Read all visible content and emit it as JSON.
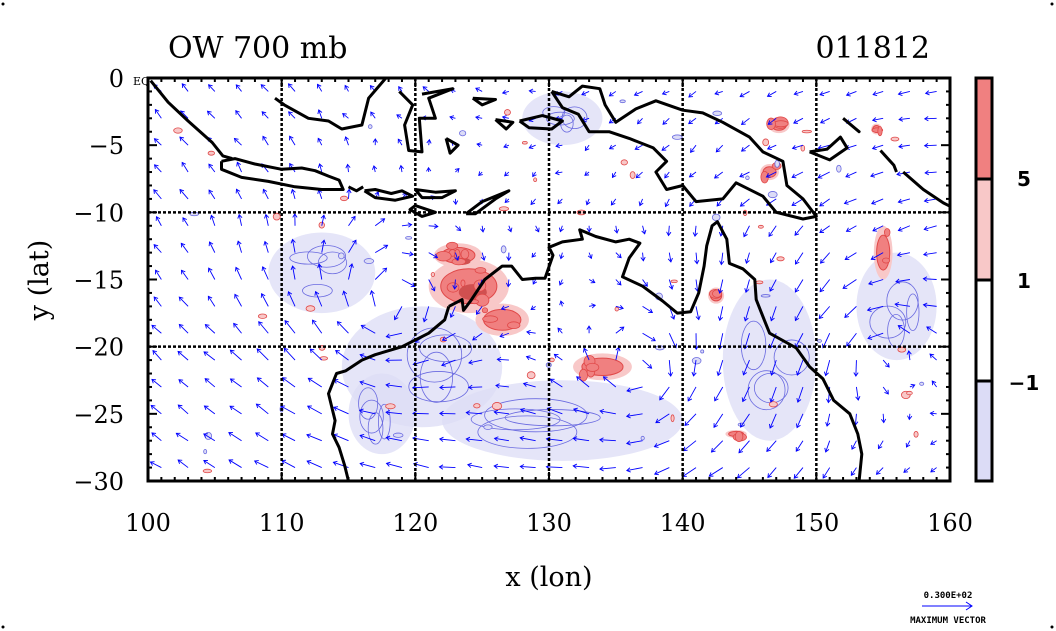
{
  "chart_data": {
    "type": "heatmap",
    "title_left": "OW 700 mb",
    "title_right": "011812",
    "xlabel": "x (lon)",
    "ylabel": "y (lat)",
    "xlim": [
      100,
      160
    ],
    "ylim": [
      -30,
      0
    ],
    "x_ticks": [
      100,
      110,
      120,
      130,
      140,
      150,
      160
    ],
    "x_tick_labels": [
      "100",
      "110",
      "120",
      "130",
      "140",
      "150",
      "160"
    ],
    "y_ticks": [
      0,
      -5,
      -10,
      -15,
      -20,
      -25,
      -30
    ],
    "y_tick_labels": [
      "0",
      "−5",
      "−10",
      "−15",
      "−20",
      "−25",
      "−30"
    ],
    "eq_label": "EQ",
    "grid_lon": [
      110,
      120,
      130,
      140,
      150
    ],
    "grid_lat": [
      -10,
      -20
    ],
    "colorbar": {
      "levels": [
        "5",
        "1",
        "−1"
      ],
      "colors": [
        "#f08080",
        "#f8c8c8",
        "#ffffff",
        "#dcdcf6"
      ]
    },
    "max_vector": {
      "value_label": "0.300E+02",
      "label": "MAXIMUM VECTOR"
    },
    "colors": {
      "coast": "#000000",
      "vectors": "#0000ff",
      "positive": "#e04848",
      "negative": "#6a6ae0"
    },
    "positive_regions": [
      {
        "lon": 124,
        "lat": -15.5,
        "rx": 3.0,
        "ry": 2.0,
        "strength": 6
      },
      {
        "lon": 123.2,
        "lat": -13.2,
        "rx": 1.8,
        "ry": 0.9,
        "strength": 6
      },
      {
        "lon": 126.5,
        "lat": -18.0,
        "rx": 2.0,
        "ry": 1.2,
        "strength": 3
      },
      {
        "lon": 134.0,
        "lat": -21.5,
        "rx": 2.2,
        "ry": 1.0,
        "strength": 4
      },
      {
        "lon": 155.0,
        "lat": -13.0,
        "rx": 0.7,
        "ry": 2.0,
        "strength": 2
      },
      {
        "lon": 142.5,
        "lat": -16.2,
        "rx": 0.6,
        "ry": 0.6,
        "strength": 2
      },
      {
        "lon": 147.2,
        "lat": -3.5,
        "rx": 0.8,
        "ry": 0.6,
        "strength": 3
      },
      {
        "lon": 146.5,
        "lat": -7.0,
        "rx": 0.7,
        "ry": 0.6,
        "strength": 2
      },
      {
        "lon": 144.0,
        "lat": -26.5,
        "rx": 0.8,
        "ry": 0.3,
        "strength": 2
      },
      {
        "lon": 154.5,
        "lat": -3.8,
        "rx": 0.4,
        "ry": 0.4,
        "strength": 2
      }
    ],
    "negative_regions": [
      {
        "lon": 120.5,
        "lat": -21.5,
        "rx": 6.0,
        "ry": 4.5
      },
      {
        "lon": 131.0,
        "lat": -25.5,
        "rx": 9.0,
        "ry": 3.0
      },
      {
        "lon": 146.5,
        "lat": -21.0,
        "rx": 3.5,
        "ry": 6.0
      },
      {
        "lon": 113.0,
        "lat": -14.5,
        "rx": 4.0,
        "ry": 3.0
      },
      {
        "lon": 131.0,
        "lat": -3.0,
        "rx": 3.0,
        "ry": 2.0
      },
      {
        "lon": 156.0,
        "lat": -17.0,
        "rx": 3.0,
        "ry": 4.0
      },
      {
        "lon": 117.5,
        "lat": -25.0,
        "rx": 2.5,
        "ry": 3.0
      }
    ],
    "coastlines": [
      [
        [
          100.2,
          -0.2
        ],
        [
          101.5,
          -1.8
        ],
        [
          103.0,
          -3.2
        ],
        [
          104.8,
          -4.8
        ],
        [
          105.6,
          -5.8
        ],
        [
          106.3,
          -6.0
        ]
      ],
      [
        [
          105.5,
          -6.2
        ],
        [
          106.5,
          -6.0
        ],
        [
          108.0,
          -6.4
        ],
        [
          110.0,
          -6.8
        ],
        [
          111.5,
          -6.7
        ],
        [
          112.5,
          -6.9
        ],
        [
          113.5,
          -7.3
        ],
        [
          114.3,
          -7.6
        ],
        [
          114.6,
          -8.3
        ],
        [
          113.0,
          -8.3
        ],
        [
          111.0,
          -8.1
        ],
        [
          109.0,
          -7.7
        ],
        [
          107.0,
          -7.4
        ],
        [
          105.5,
          -6.8
        ],
        [
          105.5,
          -6.2
        ]
      ],
      [
        [
          115.0,
          -8.1
        ],
        [
          115.6,
          -8.4
        ],
        [
          116.1,
          -8.1
        ]
      ],
      [
        [
          116.2,
          -8.4
        ],
        [
          117.0,
          -8.3
        ],
        [
          118.2,
          -8.6
        ],
        [
          119.0,
          -8.4
        ],
        [
          119.8,
          -8.8
        ],
        [
          118.5,
          -9.1
        ],
        [
          117.0,
          -8.9
        ],
        [
          116.2,
          -8.4
        ]
      ],
      [
        [
          120.0,
          -9.5
        ],
        [
          121.5,
          -10.0
        ],
        [
          120.5,
          -10.3
        ],
        [
          119.6,
          -9.8
        ],
        [
          120.0,
          -9.5
        ]
      ],
      [
        [
          120.0,
          -8.3
        ],
        [
          121.5,
          -8.5
        ],
        [
          123.0,
          -8.4
        ],
        [
          122.0,
          -8.9
        ],
        [
          120.5,
          -8.9
        ],
        [
          120.0,
          -8.3
        ]
      ],
      [
        [
          123.8,
          -10.1
        ],
        [
          125.0,
          -9.2
        ],
        [
          127.0,
          -8.4
        ],
        [
          126.0,
          -9.0
        ],
        [
          124.5,
          -10.1
        ],
        [
          123.8,
          -10.1
        ]
      ],
      [
        [
          109.5,
          -1.5
        ],
        [
          110.2,
          -2.0
        ],
        [
          112.0,
          -3.0
        ],
        [
          113.5,
          -3.2
        ],
        [
          114.5,
          -3.8
        ],
        [
          116.0,
          -3.5
        ],
        [
          116.5,
          -1.5
        ],
        [
          117.8,
          0.0
        ]
      ],
      [
        [
          118.8,
          -1.0
        ],
        [
          119.8,
          -2.0
        ],
        [
          119.2,
          -3.5
        ],
        [
          119.5,
          -5.4
        ],
        [
          120.5,
          -5.5
        ],
        [
          120.3,
          -3.0
        ],
        [
          121.5,
          -3.0
        ],
        [
          121.0,
          -1.5
        ],
        [
          122.8,
          -0.8
        ],
        [
          120.5,
          -1.2
        ]
      ],
      [
        [
          122.3,
          -4.5
        ],
        [
          123.2,
          -5.0
        ],
        [
          122.6,
          -5.6
        ],
        [
          122.3,
          -4.5
        ]
      ],
      [
        [
          124.3,
          -1.5
        ],
        [
          126.0,
          -1.6
        ],
        [
          125.0,
          -2.0
        ],
        [
          124.3,
          -1.5
        ]
      ],
      [
        [
          126.0,
          -3.1
        ],
        [
          127.3,
          -3.3
        ],
        [
          126.8,
          -3.8
        ],
        [
          126.0,
          -3.1
        ]
      ],
      [
        [
          127.8,
          -3.2
        ],
        [
          129.5,
          -2.8
        ],
        [
          131.0,
          -3.2
        ],
        [
          130.2,
          -3.8
        ],
        [
          128.5,
          -3.7
        ],
        [
          127.8,
          -3.2
        ]
      ],
      [
        [
          130.2,
          -1.0
        ],
        [
          131.5,
          -1.4
        ],
        [
          132.5,
          -0.6
        ],
        [
          133.8,
          -0.8
        ],
        [
          134.2,
          -2.0
        ],
        [
          135.0,
          -3.3
        ],
        [
          136.5,
          -2.3
        ],
        [
          138.0,
          -1.7
        ],
        [
          140.0,
          -2.4
        ],
        [
          141.5,
          -2.6
        ],
        [
          143.0,
          -3.3
        ],
        [
          145.0,
          -4.4
        ],
        [
          146.0,
          -5.5
        ],
        [
          147.5,
          -6.2
        ],
        [
          147.8,
          -8.0
        ],
        [
          149.0,
          -9.0
        ],
        [
          150.0,
          -10.3
        ],
        [
          149.0,
          -10.5
        ],
        [
          147.0,
          -10.0
        ],
        [
          146.0,
          -8.8
        ],
        [
          144.0,
          -7.8
        ],
        [
          143.0,
          -9.0
        ],
        [
          141.0,
          -9.2
        ],
        [
          140.0,
          -8.0
        ],
        [
          138.8,
          -8.3
        ],
        [
          138.0,
          -7.0
        ],
        [
          138.8,
          -6.2
        ],
        [
          137.8,
          -5.2
        ],
        [
          136.0,
          -4.5
        ],
        [
          134.5,
          -4.0
        ],
        [
          133.0,
          -4.0
        ],
        [
          132.2,
          -2.7
        ],
        [
          131.0,
          -2.2
        ],
        [
          130.2,
          -1.0
        ]
      ],
      [
        [
          149.5,
          -5.5
        ],
        [
          150.8,
          -5.3
        ],
        [
          151.8,
          -4.4
        ],
        [
          152.3,
          -5.2
        ],
        [
          151.0,
          -6.1
        ],
        [
          149.5,
          -5.5
        ]
      ],
      [
        [
          152.0,
          -3.0
        ],
        [
          153.2,
          -4.0
        ],
        [
          152.6,
          -3.5
        ],
        [
          152.0,
          -3.0
        ]
      ],
      [
        [
          154.8,
          -5.4
        ],
        [
          155.8,
          -6.5
        ],
        [
          156.0,
          -7.0
        ]
      ],
      [
        [
          156.5,
          -7.0
        ],
        [
          158.0,
          -8.3
        ],
        [
          159.5,
          -9.3
        ],
        [
          160.5,
          -9.8
        ]
      ],
      [
        [
          122.5,
          -17.0
        ],
        [
          122.2,
          -18.0
        ],
        [
          121.0,
          -19.0
        ],
        [
          119.0,
          -20.0
        ],
        [
          117.0,
          -20.6
        ],
        [
          116.0,
          -21.0
        ],
        [
          114.8,
          -21.8
        ],
        [
          114.1,
          -22.0
        ],
        [
          113.5,
          -23.5
        ],
        [
          114.0,
          -25.5
        ],
        [
          113.8,
          -26.5
        ],
        [
          114.3,
          -27.5
        ],
        [
          114.7,
          -28.8
        ],
        [
          115.0,
          -30.0
        ]
      ],
      [
        [
          122.5,
          -17.0
        ],
        [
          123.5,
          -16.5
        ],
        [
          123.6,
          -17.3
        ],
        [
          124.2,
          -16.5
        ],
        [
          125.2,
          -15.0
        ],
        [
          126.5,
          -14.0
        ],
        [
          127.2,
          -14.0
        ],
        [
          128.0,
          -15.0
        ],
        [
          129.0,
          -14.9
        ],
        [
          129.7,
          -14.9
        ],
        [
          130.3,
          -13.2
        ],
        [
          130.0,
          -12.6
        ],
        [
          131.0,
          -12.2
        ],
        [
          132.5,
          -12.0
        ],
        [
          132.3,
          -11.3
        ],
        [
          133.5,
          -11.8
        ],
        [
          135.0,
          -12.2
        ],
        [
          136.0,
          -12.0
        ],
        [
          136.8,
          -12.3
        ],
        [
          136.0,
          -13.4
        ],
        [
          135.5,
          -14.8
        ],
        [
          137.0,
          -15.5
        ],
        [
          138.5,
          -16.6
        ],
        [
          139.6,
          -17.5
        ],
        [
          140.6,
          -17.4
        ],
        [
          141.2,
          -16.0
        ],
        [
          141.6,
          -14.0
        ],
        [
          141.8,
          -12.5
        ],
        [
          142.2,
          -11.0
        ],
        [
          142.6,
          -10.7
        ],
        [
          143.3,
          -12.0
        ],
        [
          143.5,
          -13.8
        ],
        [
          144.5,
          -14.2
        ],
        [
          145.4,
          -15.0
        ],
        [
          145.5,
          -16.5
        ],
        [
          146.1,
          -18.0
        ],
        [
          146.5,
          -19.0
        ],
        [
          148.5,
          -20.1
        ],
        [
          149.5,
          -21.5
        ],
        [
          150.5,
          -22.4
        ],
        [
          151.3,
          -24.0
        ],
        [
          152.5,
          -25.0
        ],
        [
          153.1,
          -26.5
        ],
        [
          153.4,
          -28.0
        ],
        [
          153.2,
          -30.0
        ]
      ]
    ]
  }
}
